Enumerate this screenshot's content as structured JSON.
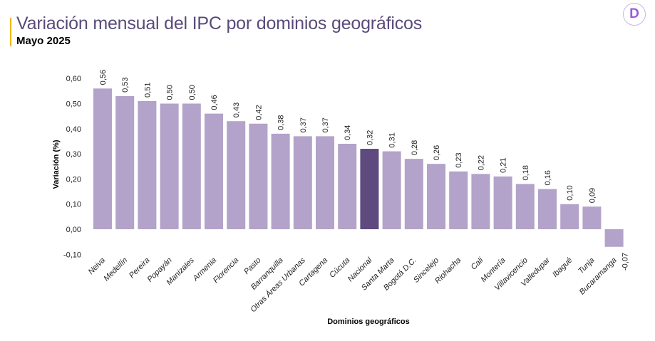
{
  "header": {
    "title": "Variación mensual del IPC por dominios geográficos",
    "subtitle": "Mayo 2025",
    "logo_text": "D",
    "accent_color": "#f2b600"
  },
  "chart_data": {
    "type": "bar",
    "xlabel": "Dominios geográficos",
    "ylabel": "Variación (%)",
    "ylim": [
      -0.1,
      0.6
    ],
    "yticks": [
      "-0,10",
      "0,00",
      "0,10",
      "0,20",
      "0,30",
      "0,40",
      "0,50",
      "0,60"
    ],
    "ytick_values": [
      -0.1,
      0,
      0.1,
      0.2,
      0.3,
      0.4,
      0.5,
      0.6
    ],
    "grid": false,
    "categories": [
      "Neiva",
      "Medellín",
      "Pereira",
      "Popayán",
      "Manizales",
      "Armenia",
      "Florencia",
      "Pasto",
      "Barranquilla",
      "Otras Áreas Urbanas",
      "Cartagena",
      "Cúcuta",
      "Nacional",
      "Santa Marta",
      "Bogotá D.C.",
      "Sincelejo",
      "Riohacha",
      "Cali",
      "Montería",
      "Villavicencio",
      "Valledupar",
      "Ibagué",
      "Tunja",
      "Bucaramanga"
    ],
    "values": [
      0.56,
      0.53,
      0.51,
      0.5,
      0.5,
      0.46,
      0.43,
      0.42,
      0.38,
      0.37,
      0.37,
      0.34,
      0.32,
      0.31,
      0.28,
      0.26,
      0.23,
      0.22,
      0.21,
      0.18,
      0.16,
      0.1,
      0.09,
      -0.07
    ],
    "data_labels": [
      "0,56",
      "0,53",
      "0,51",
      "0,50",
      "0,50",
      "0,46",
      "0,43",
      "0,42",
      "0,38",
      "0,37",
      "0,37",
      "0,34",
      "0,32",
      "0,31",
      "0,28",
      "0,26",
      "0,23",
      "0,22",
      "0,21",
      "0,18",
      "0,16",
      "0,10",
      "0,09",
      "-0,07"
    ],
    "highlight": "Nacional",
    "colors": {
      "bar": "#b3a2c9",
      "highlight": "#5e4a7e"
    }
  }
}
